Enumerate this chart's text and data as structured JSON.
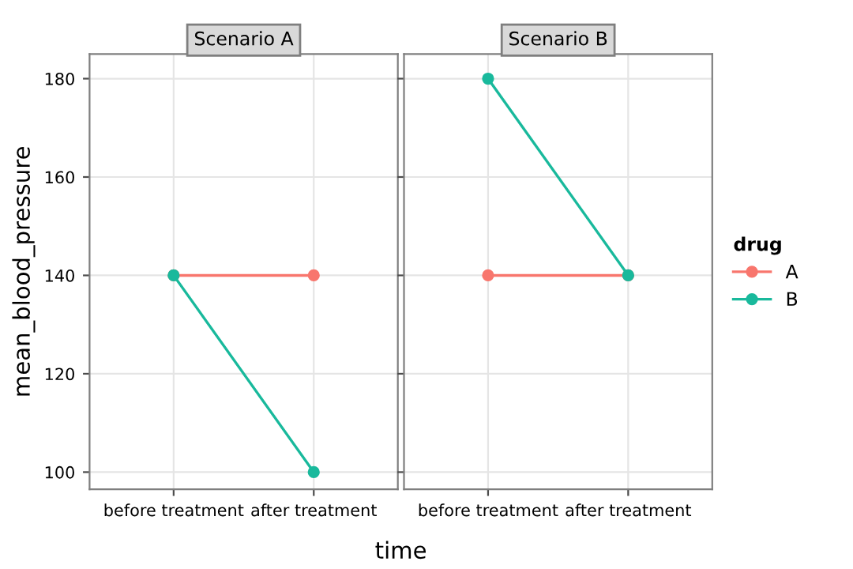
{
  "chart_data": [
    {
      "type": "line",
      "title": "Scenario A",
      "xlabel": "time",
      "ylabel": "mean_blood_pressure",
      "categories": [
        "before treatment",
        "after treatment"
      ],
      "legend_title": "drug",
      "legend": "right",
      "grid": true,
      "marker": "circle",
      "line_style": "solid",
      "ylim": [
        96.5,
        185
      ],
      "yticks": [
        100,
        120,
        140,
        160,
        180
      ],
      "series": [
        {
          "name": "A",
          "color": "#f8766d",
          "values": [
            140,
            140
          ]
        },
        {
          "name": "B",
          "color": "#19b99c",
          "values": [
            140,
            100
          ]
        }
      ]
    },
    {
      "type": "line",
      "title": "Scenario B",
      "categories": [
        "before treatment",
        "after treatment"
      ],
      "grid": true,
      "marker": "circle",
      "line_style": "solid",
      "tick_labels": "x",
      "ylim": [
        96.5,
        185
      ],
      "yticks": [
        100,
        120,
        140,
        160,
        180
      ],
      "series": [
        {
          "color": "#f8766d",
          "values": [
            140,
            140
          ]
        },
        {
          "color": "#19b99c",
          "values": [
            180,
            140
          ]
        }
      ]
    }
  ]
}
